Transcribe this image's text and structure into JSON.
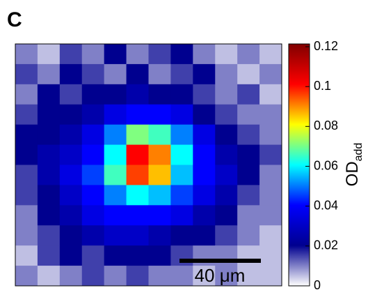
{
  "chart_data": {
    "type": "heatmap",
    "panel_label": "C",
    "z": [
      [
        0.01,
        0.005,
        0.015,
        0.01,
        0.02,
        0.01,
        0.015,
        0.02,
        0.01,
        0.005,
        0.01,
        0.005
      ],
      [
        0.015,
        0.01,
        0.02,
        0.015,
        0.01,
        0.02,
        0.01,
        0.015,
        0.02,
        0.01,
        0.005,
        0.01
      ],
      [
        0.01,
        0.02,
        0.015,
        0.02,
        0.02,
        0.025,
        0.02,
        0.02,
        0.015,
        0.01,
        0.015,
        0.005
      ],
      [
        0.015,
        0.02,
        0.02,
        0.025,
        0.035,
        0.04,
        0.04,
        0.035,
        0.02,
        0.015,
        0.01,
        0.01
      ],
      [
        0.02,
        0.02,
        0.025,
        0.035,
        0.05,
        0.07,
        0.065,
        0.05,
        0.035,
        0.02,
        0.015,
        0.01
      ],
      [
        0.02,
        0.025,
        0.03,
        0.04,
        0.06,
        0.1,
        0.09,
        0.06,
        0.04,
        0.025,
        0.02,
        0.015
      ],
      [
        0.015,
        0.025,
        0.035,
        0.045,
        0.065,
        0.095,
        0.085,
        0.055,
        0.04,
        0.03,
        0.02,
        0.01
      ],
      [
        0.015,
        0.02,
        0.03,
        0.04,
        0.05,
        0.06,
        0.055,
        0.045,
        0.035,
        0.025,
        0.015,
        0.01
      ],
      [
        0.01,
        0.02,
        0.025,
        0.035,
        0.04,
        0.04,
        0.04,
        0.035,
        0.025,
        0.02,
        0.01,
        0.01
      ],
      [
        0.01,
        0.015,
        0.02,
        0.025,
        0.03,
        0.03,
        0.025,
        0.02,
        0.02,
        0.015,
        0.01,
        0.005
      ],
      [
        0.005,
        0.015,
        0.02,
        0.015,
        0.02,
        0.02,
        0.02,
        0.015,
        0.01,
        0.01,
        0.005,
        0.005
      ],
      [
        0.01,
        0.005,
        0.01,
        0.015,
        0.01,
        0.015,
        0.01,
        0.01,
        0.005,
        0.01,
        0.005,
        0.005
      ]
    ],
    "colormap": [
      "#ffffff",
      "#00008f",
      "#0000ff",
      "#00ffff",
      "#ffff00",
      "#ff0000",
      "#800000"
    ],
    "clim": [
      0,
      0.12
    ],
    "cticks": [
      0,
      0.02,
      0.04,
      0.06,
      0.08,
      0.1,
      0.12
    ],
    "colorbar_label": {
      "main": "OD",
      "sub": "add"
    },
    "scale_bar": {
      "label": "40 μm"
    }
  }
}
